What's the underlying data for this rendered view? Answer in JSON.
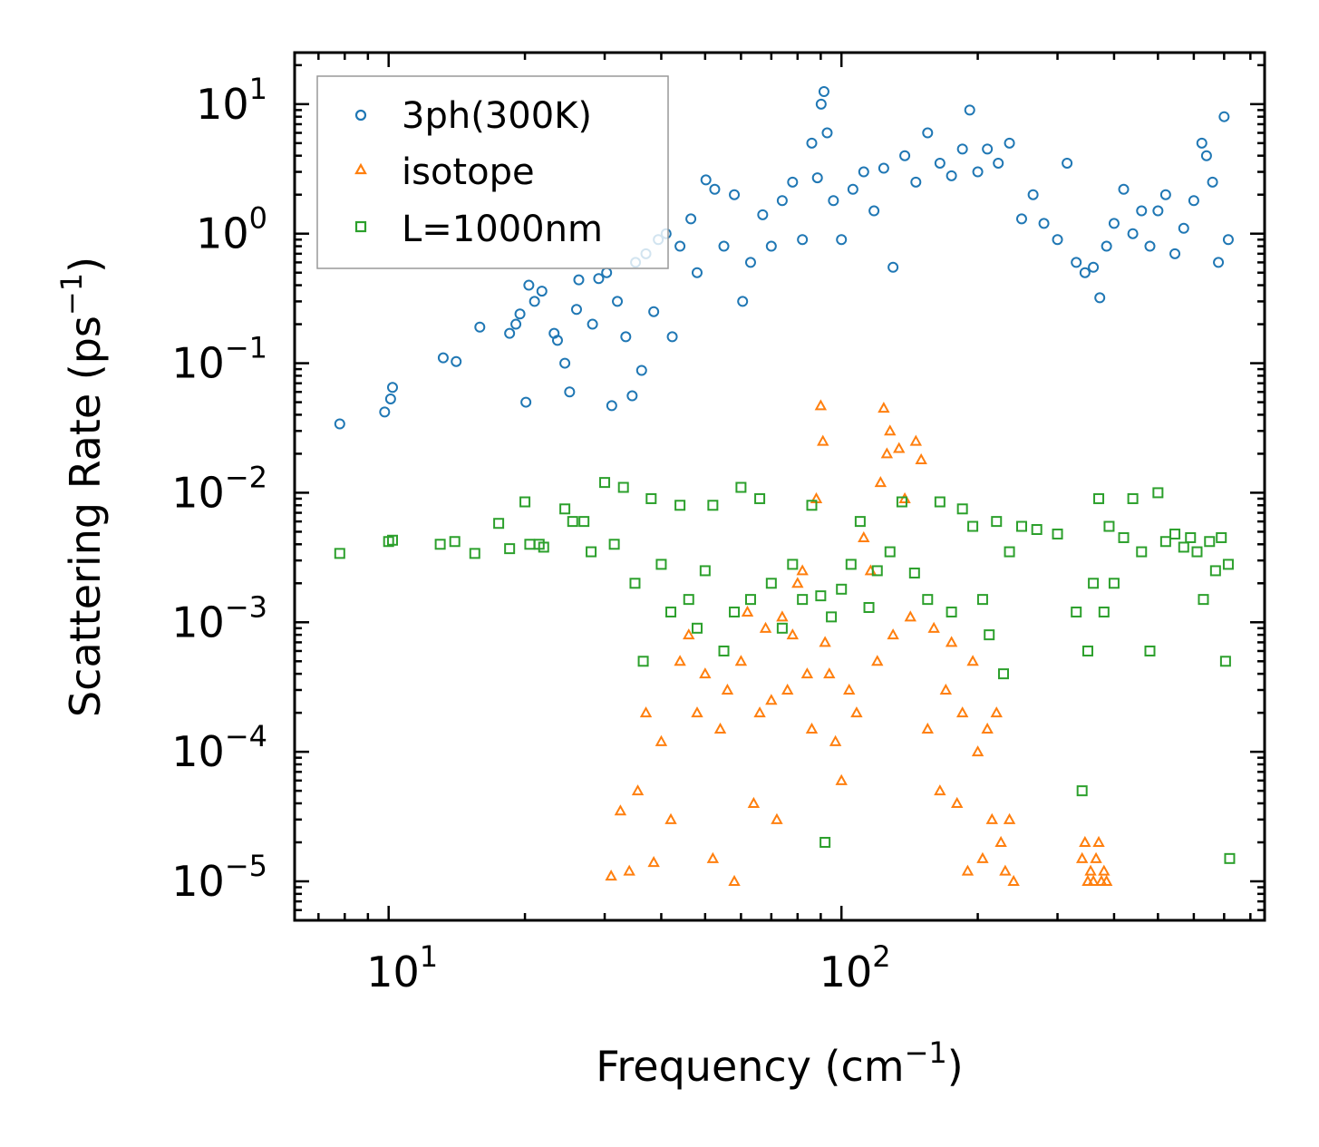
{
  "chart_data": {
    "type": "scatter",
    "title": "",
    "xlabel": {
      "text": "Frequency (cm",
      "sup": "−1",
      "close": ")"
    },
    "ylabel": {
      "text": "Scattering Rate (ps",
      "sup": "−1",
      "close": ")"
    },
    "xscale": "log",
    "yscale": "log",
    "xlim": [
      6.2,
      860
    ],
    "ylim": [
      5e-06,
      25
    ],
    "xticks": [
      {
        "base": "10",
        "exp": "1",
        "value": 10
      },
      {
        "base": "10",
        "exp": "2",
        "value": 100
      }
    ],
    "yticks": [
      {
        "base": "10",
        "exp": "1",
        "value": 10
      },
      {
        "base": "10",
        "exp": "0",
        "value": 1
      },
      {
        "base": "10",
        "exp": "−1",
        "value": 0.1
      },
      {
        "base": "10",
        "exp": "−2",
        "value": 0.01
      },
      {
        "base": "10",
        "exp": "−3",
        "value": 0.001
      },
      {
        "base": "10",
        "exp": "−4",
        "value": 0.0001
      },
      {
        "base": "10",
        "exp": "−5",
        "value": 1e-05
      }
    ],
    "grid": false,
    "legend_position": "upper-left",
    "series": [
      {
        "name": "3ph(300K)",
        "color": "#1f77b4",
        "marker": "circle",
        "x": [
          7.8,
          9.8,
          10.1,
          10.2,
          13.2,
          14.1,
          15.9,
          18.5,
          19.1,
          19.5,
          20.1,
          20.4,
          21.0,
          21.8,
          23.2,
          23.6,
          24.5,
          25.1,
          26.0,
          26.3,
          28.2,
          29.1,
          30.3,
          31.1,
          32.0,
          33.4,
          34.5,
          35.1,
          36.2,
          37.0,
          38.5,
          39.4,
          41.0,
          42.3,
          44.0,
          46.5,
          48.0,
          50.2,
          52.5,
          55.0,
          58.0,
          60.5,
          63.0,
          67.0,
          70.0,
          74.0,
          78.0,
          82.0,
          86.0,
          88.5,
          90.2,
          91.5,
          93.0,
          96.0,
          100.0,
          106.0,
          112.0,
          118.0,
          124.0,
          130.0,
          138.0,
          146.0,
          155.0,
          165.0,
          175.0,
          185.0,
          192.0,
          200.0,
          210.0,
          222.0,
          235.0,
          250.0,
          265.0,
          280.0,
          300.0,
          315.0,
          330.0,
          345.0,
          360.0,
          372.0,
          385.0,
          400.0,
          420.0,
          440.0,
          460.0,
          480.0,
          500.0,
          520.0,
          545.0,
          570.0,
          600.0,
          625.0,
          640.0,
          660.0,
          680.0,
          700.0,
          715.0
        ],
        "y": [
          0.034,
          0.042,
          0.053,
          0.065,
          0.11,
          0.103,
          0.19,
          0.17,
          0.2,
          0.24,
          0.05,
          0.4,
          0.3,
          0.36,
          0.17,
          0.15,
          0.1,
          0.06,
          0.26,
          0.44,
          0.2,
          0.45,
          0.5,
          0.047,
          0.3,
          0.16,
          0.056,
          0.6,
          0.088,
          0.7,
          0.25,
          0.9,
          1.0,
          0.16,
          0.8,
          1.3,
          0.5,
          2.6,
          2.2,
          0.8,
          2.0,
          0.3,
          0.6,
          1.4,
          0.8,
          1.8,
          2.5,
          0.9,
          5.0,
          2.7,
          10.0,
          12.5,
          6.0,
          1.8,
          0.9,
          2.2,
          3.0,
          1.5,
          3.2,
          0.55,
          4.0,
          2.5,
          6.0,
          3.5,
          2.8,
          4.5,
          9.0,
          3.0,
          4.5,
          3.5,
          5.0,
          1.3,
          2.0,
          1.2,
          0.9,
          3.5,
          0.6,
          0.5,
          0.55,
          0.32,
          0.8,
          1.2,
          2.2,
          1.0,
          1.5,
          0.8,
          1.5,
          2.0,
          0.7,
          1.1,
          1.8,
          5.0,
          4.0,
          2.5,
          0.6,
          8.0,
          0.9
        ]
      },
      {
        "name": "isotope",
        "color": "#ff7f0e",
        "marker": "triangle",
        "x": [
          31.0,
          32.5,
          34.0,
          35.5,
          37.0,
          38.5,
          40.0,
          42.0,
          44.0,
          46.0,
          48.0,
          50.0,
          52.0,
          54.0,
          56.0,
          58.0,
          60.0,
          62.0,
          64.0,
          66.0,
          68.0,
          70.0,
          72.0,
          74.0,
          76.0,
          78.0,
          80.0,
          82.0,
          84.0,
          86.0,
          88.0,
          90.0,
          91.0,
          92.0,
          94.0,
          97.0,
          100.0,
          104.0,
          108.0,
          112.0,
          116.0,
          120.0,
          122.0,
          124.0,
          126.0,
          128.0,
          130.0,
          134.0,
          138.0,
          142.0,
          146.0,
          150.0,
          155.0,
          160.0,
          165.0,
          170.0,
          175.0,
          180.0,
          185.0,
          190.0,
          195.0,
          200.0,
          205.0,
          210.0,
          215.0,
          220.0,
          225.0,
          230.0,
          235.0,
          240.0,
          340.0,
          345.0,
          350.0,
          355.0,
          360.0,
          365.0,
          370.0,
          375.0,
          380.0,
          385.0
        ],
        "y": [
          1.1e-05,
          3.5e-05,
          1.2e-05,
          5e-05,
          0.0002,
          1.4e-05,
          0.00012,
          3e-05,
          0.0005,
          0.0008,
          0.0002,
          0.0004,
          1.5e-05,
          0.00015,
          0.0003,
          1e-05,
          0.0005,
          0.0012,
          4e-05,
          0.0002,
          0.0009,
          0.00025,
          3e-05,
          0.0011,
          0.0003,
          0.0008,
          0.002,
          0.0025,
          0.0004,
          0.00015,
          0.009,
          0.047,
          0.025,
          0.0007,
          0.0004,
          0.00012,
          6e-05,
          0.0003,
          0.0002,
          0.0045,
          0.0025,
          0.0005,
          0.012,
          0.045,
          0.02,
          0.03,
          0.0008,
          0.022,
          0.009,
          0.0011,
          0.025,
          0.018,
          0.00015,
          0.0009,
          5e-05,
          0.0003,
          0.0007,
          4e-05,
          0.0002,
          1.2e-05,
          0.0005,
          0.0001,
          1.5e-05,
          0.00015,
          3e-05,
          0.0002,
          2e-05,
          1.2e-05,
          3e-05,
          1e-05,
          1.5e-05,
          2e-05,
          1e-05,
          1.2e-05,
          1e-05,
          1.5e-05,
          2e-05,
          1e-05,
          1.2e-05,
          1e-05
        ]
      },
      {
        "name": "L=1000nm",
        "color": "#2ca02c",
        "marker": "square",
        "x": [
          7.8,
          10.0,
          10.2,
          13.0,
          14.0,
          15.5,
          17.5,
          18.5,
          20.0,
          20.5,
          21.5,
          22.0,
          24.5,
          25.5,
          27.0,
          28.0,
          30.0,
          31.5,
          33.0,
          35.0,
          36.5,
          38.0,
          40.0,
          42.0,
          44.0,
          46.0,
          48.0,
          50.0,
          52.0,
          55.0,
          58.0,
          60.0,
          63.0,
          66.0,
          70.0,
          74.0,
          78.0,
          82.0,
          86.0,
          90.0,
          92.0,
          95.0,
          100.0,
          105.0,
          110.0,
          115.0,
          120.0,
          128.0,
          136.0,
          145.0,
          155.0,
          165.0,
          175.0,
          185.0,
          195.0,
          205.0,
          212.0,
          220.0,
          228.0,
          235.0,
          250.0,
          270.0,
          300.0,
          330.0,
          340.0,
          350.0,
          360.0,
          370.0,
          380.0,
          390.0,
          400.0,
          420.0,
          440.0,
          460.0,
          480.0,
          500.0,
          520.0,
          545.0,
          570.0,
          590.0,
          610.0,
          630.0,
          650.0,
          670.0,
          690.0,
          705.0,
          715.0,
          720.0
        ],
        "y": [
          0.0034,
          0.0042,
          0.0043,
          0.004,
          0.0042,
          0.0034,
          0.0058,
          0.0037,
          0.0085,
          0.004,
          0.004,
          0.0038,
          0.0075,
          0.006,
          0.006,
          0.0035,
          0.012,
          0.004,
          0.011,
          0.002,
          0.0005,
          0.009,
          0.0028,
          0.0012,
          0.008,
          0.0015,
          0.0009,
          0.0025,
          0.008,
          0.0006,
          0.0012,
          0.011,
          0.0015,
          0.009,
          0.002,
          0.0009,
          0.0028,
          0.0015,
          0.008,
          0.0016,
          2e-05,
          0.0011,
          0.0018,
          0.0028,
          0.006,
          0.0013,
          0.0025,
          0.0035,
          0.0085,
          0.0024,
          0.0015,
          0.0085,
          0.0012,
          0.0075,
          0.0055,
          0.0015,
          0.0008,
          0.006,
          0.0004,
          0.0035,
          0.0055,
          0.0052,
          0.0048,
          0.0012,
          5e-05,
          0.0006,
          0.002,
          0.009,
          0.0012,
          0.0055,
          0.002,
          0.0045,
          0.009,
          0.0035,
          0.0006,
          0.01,
          0.0042,
          0.0048,
          0.0038,
          0.0045,
          0.0035,
          0.0015,
          0.0042,
          0.0025,
          0.0045,
          0.0005,
          0.0028,
          1.5e-05
        ]
      }
    ]
  }
}
